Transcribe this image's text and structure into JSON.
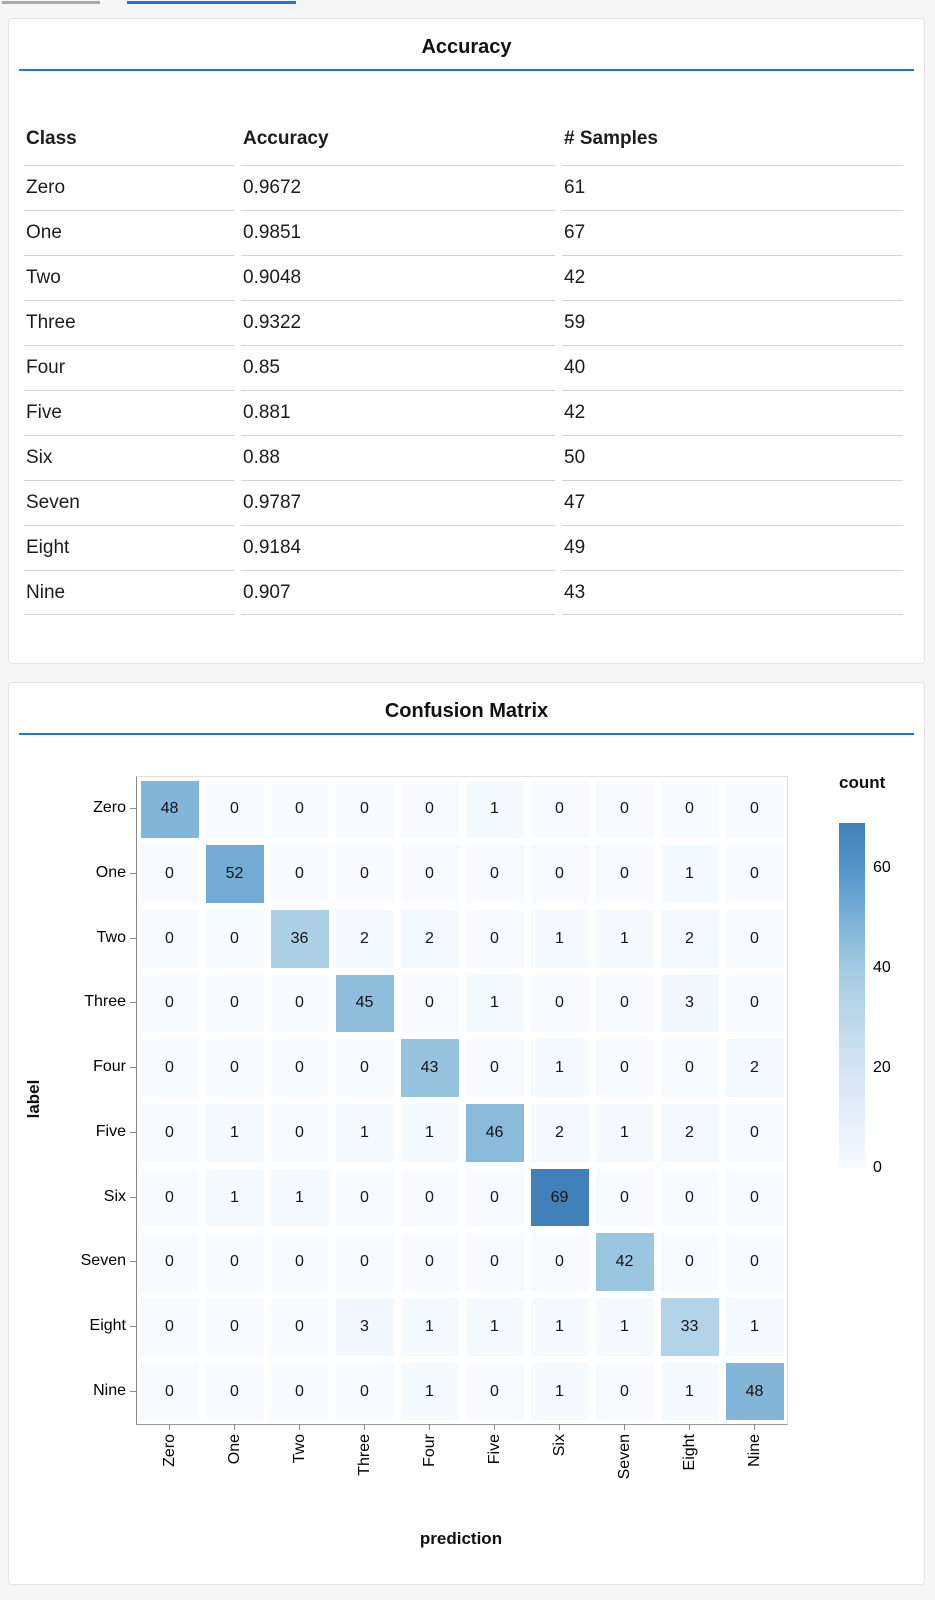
{
  "top_bars": {
    "gray_color": "#a9a9a9",
    "active_color": "#1a73e8"
  },
  "colors": {
    "page_bg": "#f6f6f7",
    "accent_underline": "#1a73e8",
    "card_border": "#e3e3e3",
    "table_line": "#d2d2d2",
    "axis_line": "#8a8a8a"
  },
  "chart_data": [
    {
      "type": "table",
      "title": "Accuracy",
      "columns": [
        "Class",
        "Accuracy",
        "# Samples"
      ],
      "rows": [
        [
          "Zero",
          "0.9672",
          "61"
        ],
        [
          "One",
          "0.9851",
          "67"
        ],
        [
          "Two",
          "0.9048",
          "42"
        ],
        [
          "Three",
          "0.9322",
          "59"
        ],
        [
          "Four",
          "0.85",
          "40"
        ],
        [
          "Five",
          "0.881",
          "42"
        ],
        [
          "Six",
          "0.88",
          "50"
        ],
        [
          "Seven",
          "0.9787",
          "47"
        ],
        [
          "Eight",
          "0.9184",
          "49"
        ],
        [
          "Nine",
          "0.907",
          "43"
        ]
      ]
    },
    {
      "type": "heatmap",
      "title": "Confusion Matrix",
      "xlabel": "prediction",
      "ylabel": "label",
      "x_categories": [
        "Zero",
        "One",
        "Two",
        "Three",
        "Four",
        "Five",
        "Six",
        "Seven",
        "Eight",
        "Nine"
      ],
      "y_categories": [
        "Zero",
        "One",
        "Two",
        "Three",
        "Four",
        "Five",
        "Six",
        "Seven",
        "Eight",
        "Nine"
      ],
      "values": [
        [
          48,
          0,
          0,
          0,
          0,
          1,
          0,
          0,
          0,
          0
        ],
        [
          0,
          52,
          0,
          0,
          0,
          0,
          0,
          0,
          1,
          0
        ],
        [
          0,
          0,
          36,
          2,
          2,
          0,
          1,
          1,
          2,
          0
        ],
        [
          0,
          0,
          0,
          45,
          0,
          1,
          0,
          0,
          3,
          0
        ],
        [
          0,
          0,
          0,
          0,
          43,
          0,
          1,
          0,
          0,
          2
        ],
        [
          0,
          1,
          0,
          1,
          1,
          46,
          2,
          1,
          2,
          0
        ],
        [
          0,
          1,
          1,
          0,
          0,
          0,
          69,
          0,
          0,
          0
        ],
        [
          0,
          0,
          0,
          0,
          0,
          0,
          0,
          42,
          0,
          0
        ],
        [
          0,
          0,
          0,
          3,
          1,
          1,
          1,
          1,
          33,
          1
        ],
        [
          0,
          0,
          0,
          0,
          1,
          0,
          1,
          0,
          1,
          48
        ]
      ],
      "legend": {
        "title": "count",
        "ticks": [
          60,
          40,
          20,
          0
        ],
        "domain": [
          0,
          69
        ]
      },
      "colormap": [
        [
          0,
          "#f7fbff"
        ],
        [
          20,
          "#d3e4f3"
        ],
        [
          40,
          "#a2cbe2"
        ],
        [
          60,
          "#5295c9"
        ],
        [
          69,
          "#3f81b8"
        ]
      ],
      "grid": false,
      "legend_position": "right"
    }
  ]
}
